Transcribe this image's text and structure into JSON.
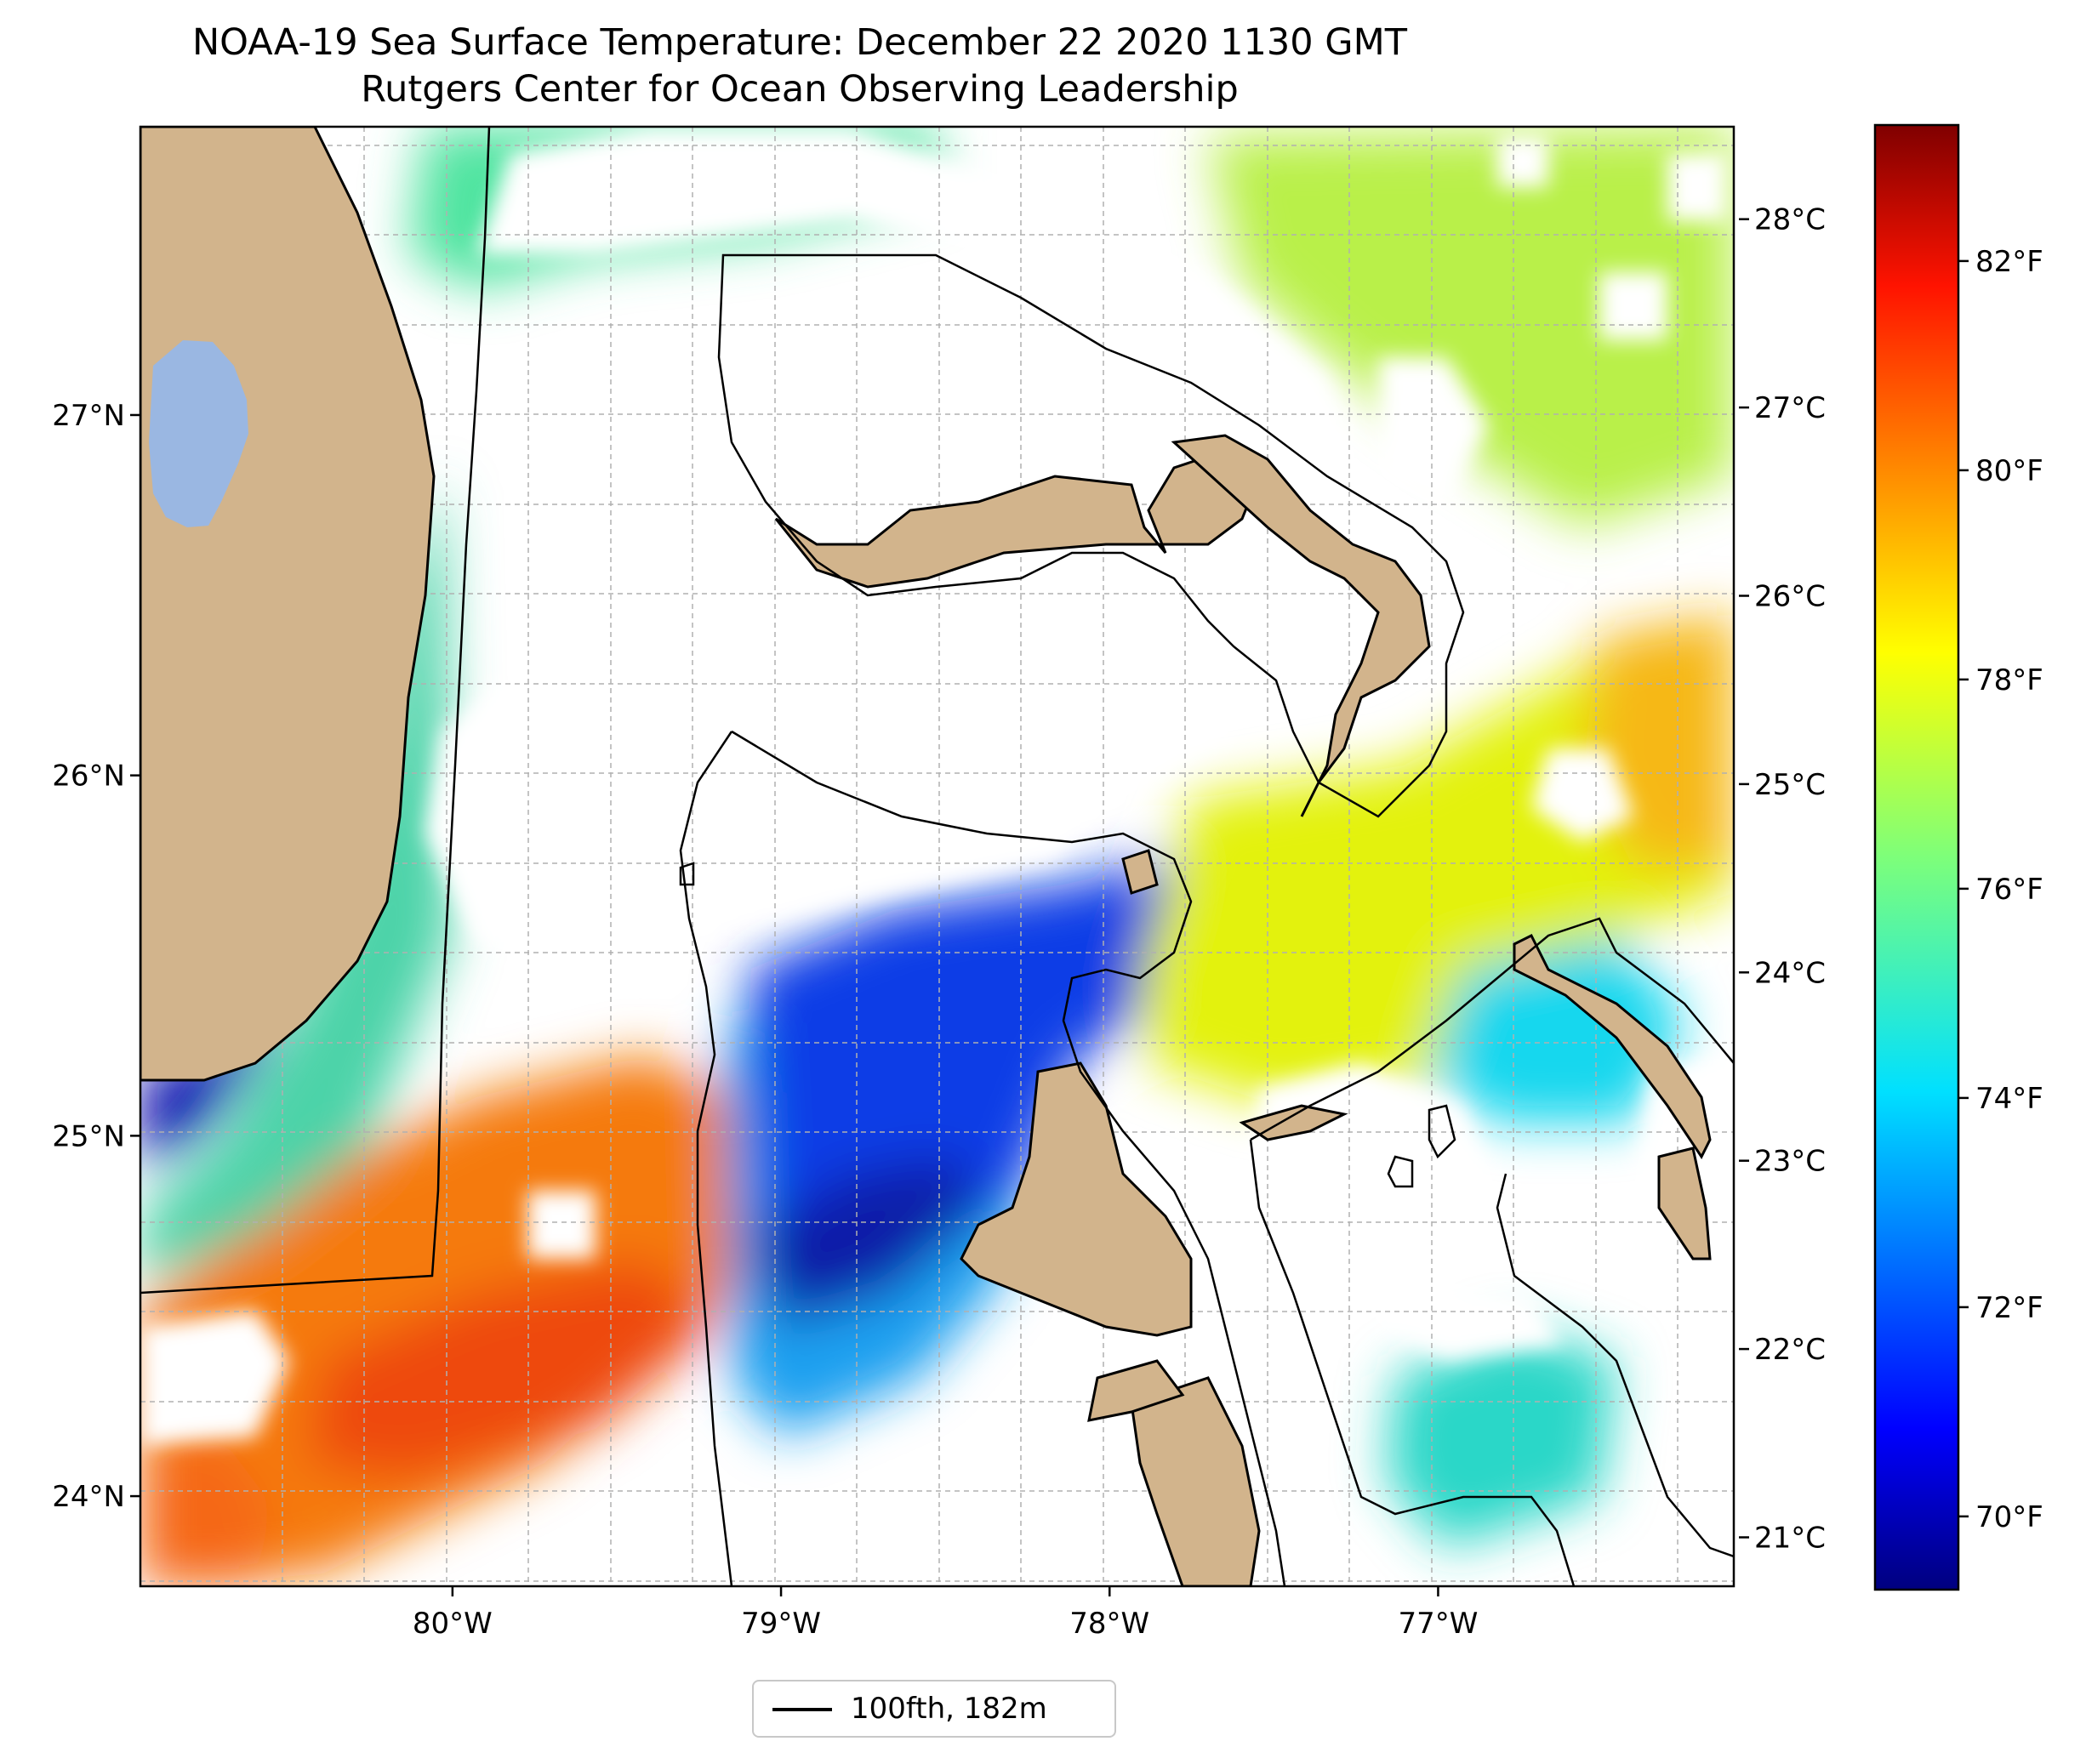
{
  "title": "NOAA-19 Sea Surface Temperature: December 22 2020 1130 GMT",
  "subtitle": "Rutgers Center for Ocean Observing Leadership",
  "map": {
    "extent": {
      "lon": [
        -80.95,
        -76.1
      ],
      "lat": [
        23.75,
        27.8
      ]
    },
    "lon_ticks": [
      -80,
      -79,
      -78,
      -77
    ],
    "lon_labels": [
      "80°W",
      "79°W",
      "78°W",
      "77°W"
    ],
    "lat_ticks": [
      24,
      25,
      26,
      27
    ],
    "lat_labels": [
      "24°N",
      "25°N",
      "26°N",
      "27°N"
    ],
    "grid": true,
    "land_color": "#d2b48c",
    "lake_color": "#9ab7e2",
    "no_data_color": "#ffffff",
    "coastline_color": "#000000"
  },
  "colorbar": {
    "colormap": "jet",
    "range_f": [
      69.3,
      83.3
    ],
    "f_ticks": [
      70,
      72,
      74,
      76,
      78,
      80,
      82
    ],
    "f_labels": [
      "70°F",
      "72°F",
      "74°F",
      "76°F",
      "78°F",
      "80°F",
      "82°F"
    ],
    "c_ticks": [
      21,
      22,
      23,
      24,
      25,
      26,
      27,
      28
    ],
    "c_labels": [
      "21°C",
      "22°C",
      "23°C",
      "24°C",
      "25°C",
      "26°C",
      "27°C",
      "28°C"
    ]
  },
  "legend": {
    "label": "100fth, 182m",
    "placement": "bottom-center"
  }
}
